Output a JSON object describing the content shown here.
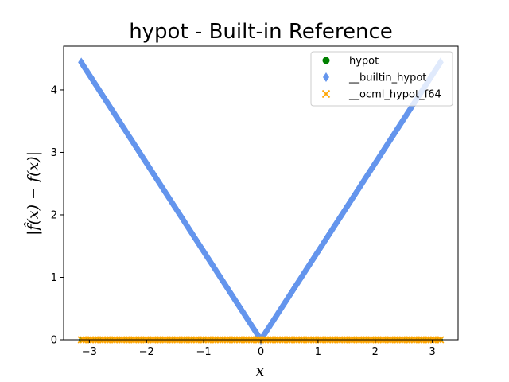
{
  "chart_data": {
    "type": "scatter",
    "title": "hypot - Built-in Reference",
    "xlabel": "x",
    "ylabel": "|f̂(x) − f(x)|",
    "xlim": [
      -3.45,
      3.45
    ],
    "ylim": [
      0,
      4.7
    ],
    "xticks": [
      -3,
      -2,
      -1,
      0,
      1,
      2,
      3
    ],
    "xtick_labels": [
      "−3",
      "−2",
      "−1",
      "0",
      "1",
      "2",
      "3"
    ],
    "yticks": [
      0,
      1,
      2,
      3,
      4
    ],
    "ytick_labels": [
      "0",
      "1",
      "2",
      "3",
      "4"
    ],
    "grid": false,
    "legend_position": "top-right",
    "series": [
      {
        "name": "hypot",
        "marker": "circle",
        "color": "#008000",
        "x": [
          -3.14159,
          3.14159
        ],
        "y": [
          0,
          0
        ]
      },
      {
        "name": "__builtin_hypot",
        "marker": "diamond",
        "color": "#6495ed",
        "x": [
          -3.14159,
          0,
          3.14159
        ],
        "y": [
          4.44,
          0,
          4.44
        ]
      },
      {
        "name": "__ocml_hypot_f64",
        "marker": "x",
        "color": "#ffa500",
        "x": [
          -3.14159,
          3.14159
        ],
        "y": [
          0,
          0
        ]
      }
    ]
  }
}
